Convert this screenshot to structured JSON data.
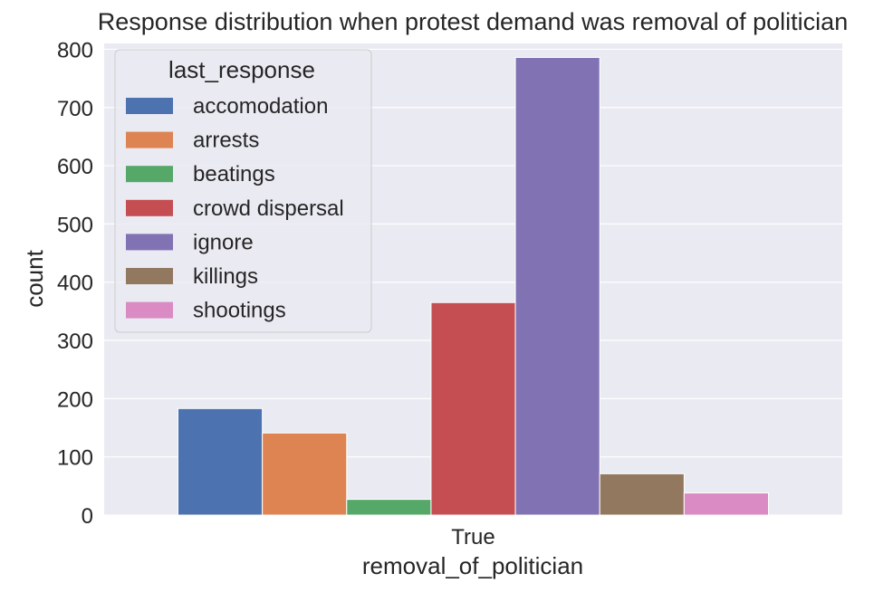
{
  "chart_data": {
    "type": "bar",
    "title": "Response distribution when protest demand was removal of politician",
    "xlabel": "removal_of_politician",
    "ylabel": "count",
    "categories": [
      "True"
    ],
    "ylim": [
      0,
      810
    ],
    "yticks": [
      0,
      100,
      200,
      300,
      400,
      500,
      600,
      700,
      800
    ],
    "grid": true,
    "legend_title": "last_response",
    "legend_position": "top-left",
    "series": [
      {
        "name": "accomodation",
        "color": "#4c72b0",
        "values": [
          183
        ]
      },
      {
        "name": "arrests",
        "color": "#dd8452",
        "values": [
          141
        ]
      },
      {
        "name": "beatings",
        "color": "#55a868",
        "values": [
          27
        ]
      },
      {
        "name": "crowd dispersal",
        "color": "#c44e52",
        "values": [
          365
        ]
      },
      {
        "name": "ignore",
        "color": "#8172b3",
        "values": [
          786
        ]
      },
      {
        "name": "killings",
        "color": "#937860",
        "values": [
          71
        ]
      },
      {
        "name": "shootings",
        "color": "#da8bc3",
        "values": [
          38
        ]
      }
    ],
    "colors": {
      "plot_background": "#eaeaf2",
      "grid": "#ffffff"
    }
  }
}
